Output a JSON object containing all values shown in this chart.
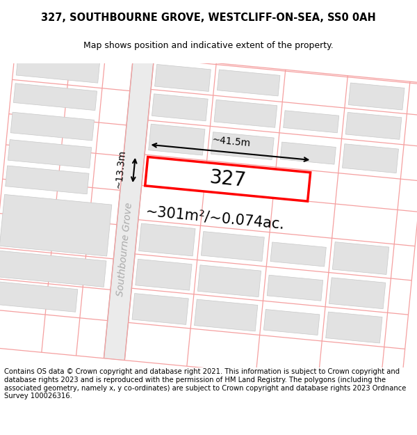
{
  "title_line1": "327, SOUTHBOURNE GROVE, WESTCLIFF-ON-SEA, SS0 0AH",
  "title_line2": "Map shows position and indicative extent of the property.",
  "footer_text": "Contains OS data © Crown copyright and database right 2021. This information is subject to Crown copyright and database rights 2023 and is reproduced with the permission of HM Land Registry. The polygons (including the associated geometry, namely x, y co-ordinates) are subject to Crown copyright and database rights 2023 Ordnance Survey 100026316.",
  "area_label": "~301m²/~0.074ac.",
  "width_label": "~41.5m",
  "height_label": "~13.3m",
  "plot_number": "327",
  "street_label": "Southbourne Grove",
  "bg_color": "#ffffff",
  "building_fill": "#e2e2e2",
  "building_edge": "#c8c8c8",
  "plot_line_color": "#ff0000",
  "plot_fill": "#ffffff",
  "pink_line_color": "#f5a0a0",
  "road_stripe_color": "#e0e0e0",
  "dim_line_color": "#000000",
  "title_fontsize": 10.5,
  "subtitle_fontsize": 9,
  "footer_fontsize": 7.2,
  "area_fontsize": 15,
  "plot_label_fontsize": 20,
  "street_fontsize": 10
}
